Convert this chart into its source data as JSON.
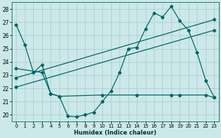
{
  "xlabel": "Humidex (Indice chaleur)",
  "background_color": "#cce8e8",
  "grid_color": "#aacfcf",
  "line_color": "#006666",
  "xlim": [
    -0.5,
    23.5
  ],
  "ylim": [
    19.5,
    28.5
  ],
  "yticks": [
    20,
    21,
    22,
    23,
    24,
    25,
    26,
    27,
    28
  ],
  "xticks": [
    0,
    1,
    2,
    3,
    4,
    5,
    6,
    7,
    8,
    9,
    10,
    11,
    12,
    13,
    14,
    15,
    16,
    17,
    18,
    19,
    20,
    21,
    22,
    23
  ],
  "line1_x": [
    0,
    1,
    2,
    3,
    4,
    5,
    6,
    7,
    8,
    9,
    10,
    11,
    12,
    13,
    14,
    15,
    16,
    17,
    18,
    19,
    20,
    21,
    22,
    23
  ],
  "line1_y": [
    26.8,
    25.3,
    23.2,
    23.8,
    21.6,
    21.4,
    19.9,
    19.85,
    20.0,
    20.2,
    21.0,
    21.8,
    23.2,
    25.0,
    25.1,
    26.5,
    27.7,
    27.4,
    28.2,
    27.1,
    26.4,
    24.7,
    22.6,
    21.3
  ],
  "line2_x": [
    0,
    3,
    4,
    5,
    10,
    14,
    18,
    19,
    22,
    23
  ],
  "line2_y": [
    23.5,
    23.2,
    21.6,
    21.4,
    21.5,
    21.5,
    21.5,
    21.5,
    21.5,
    21.3
  ],
  "line3_x": [
    0,
    23
  ],
  "line3_y": [
    22.8,
    27.2
  ],
  "line4_x": [
    0,
    23
  ],
  "line4_y": [
    22.1,
    26.4
  ]
}
